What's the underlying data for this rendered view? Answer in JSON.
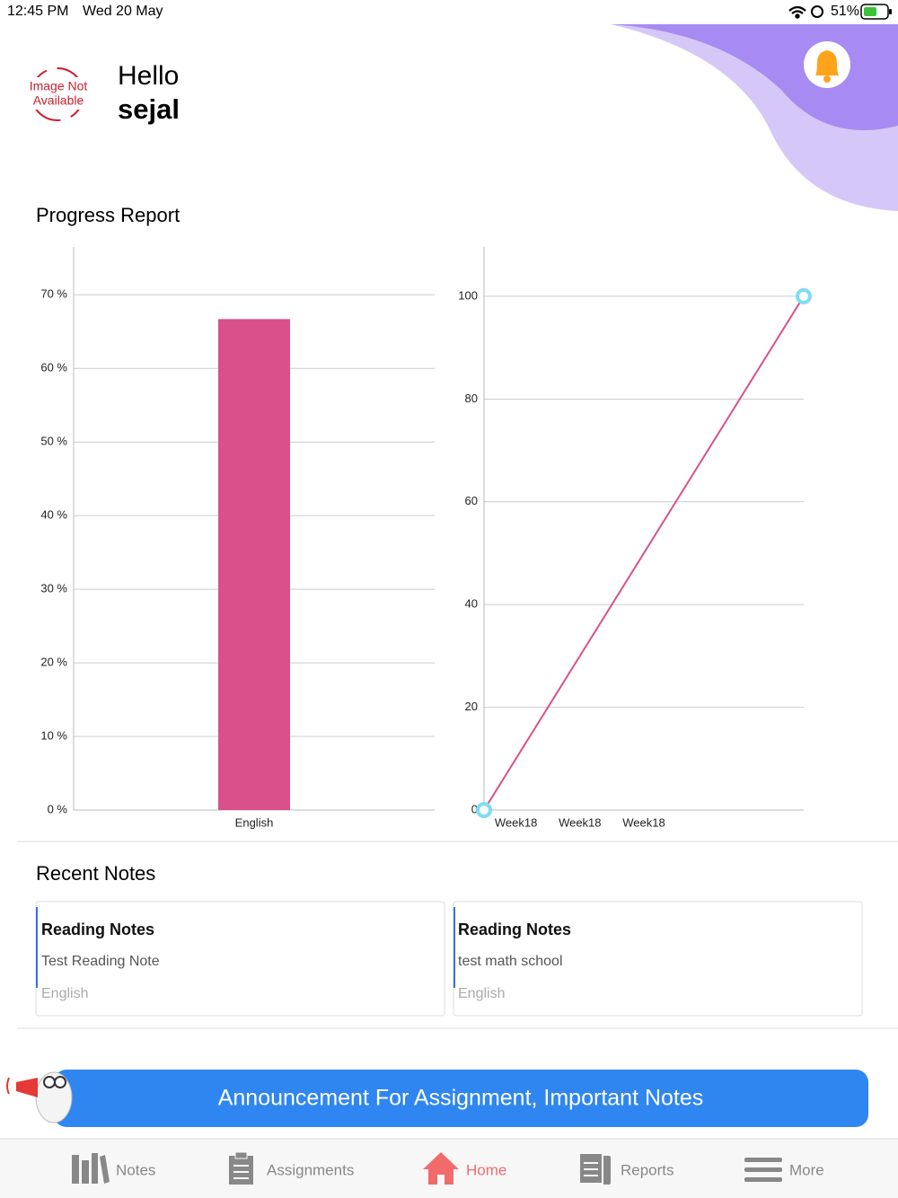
{
  "status_bar": {
    "time": "12:45 PM",
    "date": "Wed 20 May",
    "battery": "51%"
  },
  "header": {
    "image_placeholder": [
      "Image Not",
      "Available"
    ],
    "greeting": "Hello",
    "name": "sejal"
  },
  "progress": {
    "title": "Progress Report"
  },
  "chart_data": [
    {
      "type": "bar",
      "categories": [
        "English"
      ],
      "values": [
        66.7
      ],
      "color": "#d9508a",
      "ylim": [
        0,
        76.5
      ],
      "yticks": [
        {
          "value": 0,
          "label": "0 %"
        },
        {
          "value": 10,
          "label": "10 %"
        },
        {
          "value": 20,
          "label": "20 %"
        },
        {
          "value": 30,
          "label": "30 %"
        },
        {
          "value": 40,
          "label": "40 %"
        },
        {
          "value": 50,
          "label": "50 %"
        },
        {
          "value": 60,
          "label": "60 %"
        },
        {
          "value": 70,
          "label": "70 %"
        }
      ],
      "grid": true
    },
    {
      "type": "line",
      "x": [
        0,
        5
      ],
      "values": [
        0,
        100
      ],
      "color": "#d9508a",
      "marker_color": "#7fdcf5",
      "xlim": [
        0,
        5
      ],
      "xticks": [
        {
          "value": 0.5,
          "label": "Week18"
        },
        {
          "value": 1.5,
          "label": "Week18"
        },
        {
          "value": 2.5,
          "label": "Week18"
        }
      ],
      "ylim": [
        0,
        109.6
      ],
      "yticks": [
        0,
        20,
        40,
        60,
        80,
        100
      ],
      "grid": true
    }
  ],
  "recent_notes": {
    "title": "Recent Notes",
    "notes": [
      {
        "title": "Reading Notes",
        "text": "Test Reading Note",
        "subject": "English"
      },
      {
        "title": "Reading Notes",
        "text": "test math school",
        "subject": "English"
      }
    ]
  },
  "announcement": "Announcement For Assignment, Important Notes",
  "nav": [
    "Notes",
    "Assignments",
    "Home",
    "Reports",
    "More"
  ]
}
